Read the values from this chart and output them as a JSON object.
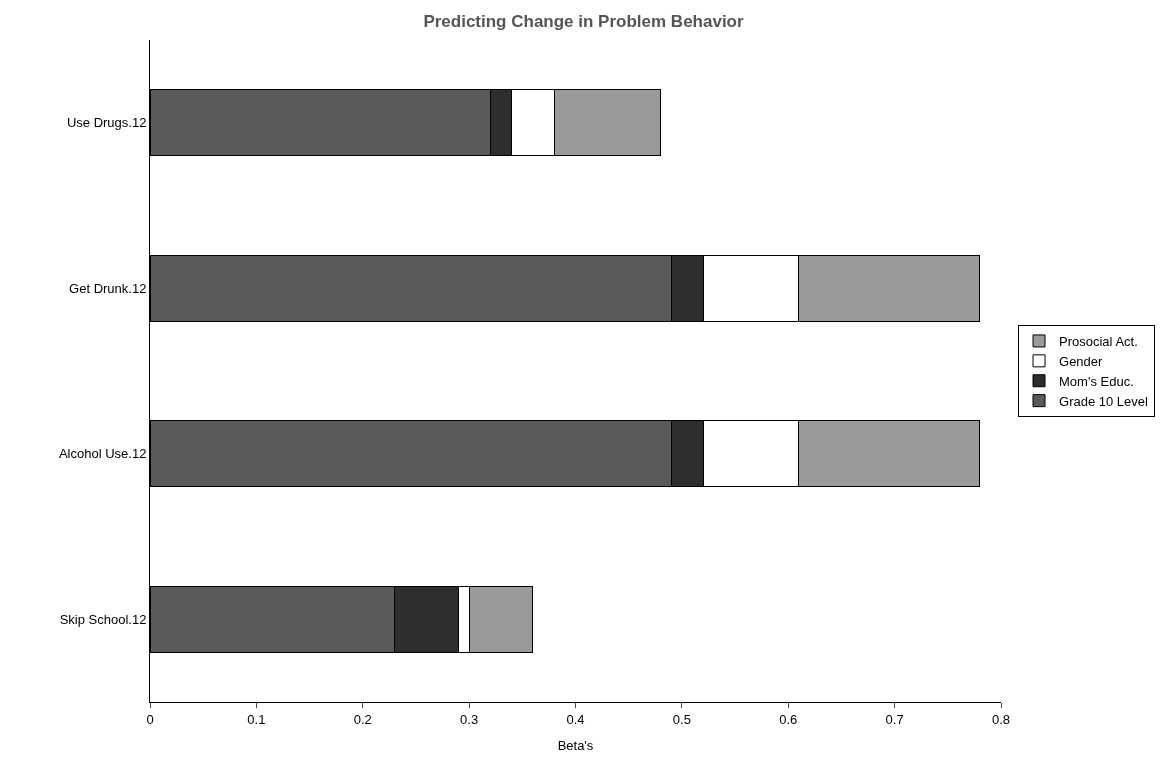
{
  "chart_data": {
    "type": "bar",
    "orientation": "horizontal",
    "stacked": true,
    "title": "Predicting Change in Problem Behavior",
    "xlabel": "Beta's",
    "categories": [
      "Use Drugs.12",
      "Get Drunk.12",
      "Alcohol Use.12",
      "Skip School.12"
    ],
    "series": [
      {
        "name": "Grade 10 Level",
        "color": "#5a5a5a",
        "values": [
          0.32,
          0.49,
          0.49,
          0.23
        ]
      },
      {
        "name": "Mom's Educ.",
        "color": "#2e2e2e",
        "values": [
          0.02,
          0.03,
          0.03,
          0.06
        ]
      },
      {
        "name": "Gender",
        "color": "#ffffff",
        "values": [
          0.04,
          0.09,
          0.09,
          0.01
        ]
      },
      {
        "name": "Prosocial Act.",
        "color": "#9a9a9a",
        "values": [
          0.1,
          0.17,
          0.17,
          0.06
        ]
      }
    ],
    "xlim": [
      0,
      0.8
    ],
    "xticks": [
      0,
      0.1,
      0.2,
      0.3,
      0.4,
      0.5,
      0.6,
      0.7,
      0.8
    ],
    "legend": "right"
  }
}
